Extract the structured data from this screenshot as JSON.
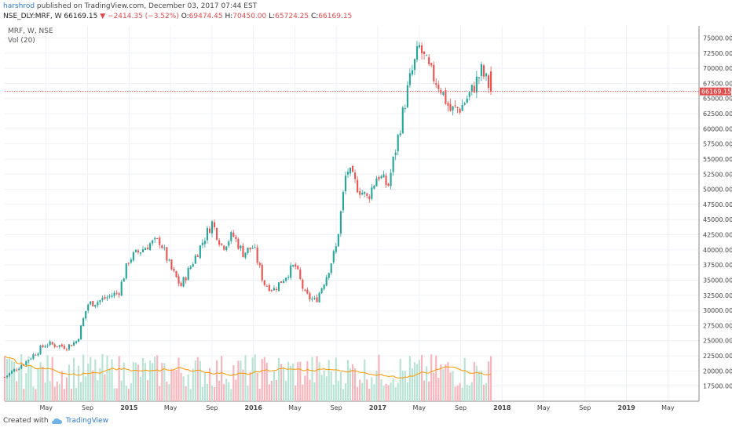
{
  "header": {
    "author": "harshrod",
    "published": "published on TradingView.com, December 03, 2017 07:44 EST"
  },
  "ohlc": {
    "symbol": "NSE_DLY:MRF, W",
    "last": "66169.15",
    "change": "−2414.35 (−3.52%)",
    "open_label": "O:",
    "open": "69474.45",
    "high_label": "H:",
    "high": "70450.00",
    "low_label": "L:",
    "low": "65724.25",
    "close_label": "C:",
    "close": "66169.15"
  },
  "legend": {
    "line1": "MRF, W, NSE",
    "line2": "Vol (20)"
  },
  "last_price_tag": "66169.15",
  "footer": {
    "created_with": "Created with",
    "brand": "TradingView"
  },
  "colors": {
    "up": "#26a69a",
    "down": "#ef5350",
    "vol_up": "#b7e3d5",
    "vol_down": "#f7b4bb",
    "vol_ma": "#ff9800",
    "grid": "#eef1f5",
    "price_line": "#e24c4c"
  },
  "chart_data": {
    "type": "candlestick",
    "y_ticks": [
      "75000.00",
      "72500.00",
      "70000.00",
      "67500.00",
      "65000.00",
      "62500.00",
      "60000.00",
      "57500.00",
      "55000.00",
      "52500.00",
      "50000.00",
      "47500.00",
      "45000.00",
      "42500.00",
      "40000.00",
      "37500.00",
      "35000.00",
      "32500.00",
      "30000.00",
      "27500.00",
      "25000.00",
      "22500.00",
      "20000.00",
      "17500.00"
    ],
    "y_tick_values": [
      75000,
      72500,
      70000,
      67500,
      65000,
      62500,
      60000,
      57500,
      55000,
      52500,
      50000,
      47500,
      45000,
      42500,
      40000,
      37500,
      35000,
      32500,
      30000,
      27500,
      25000,
      22500,
      20000,
      17500
    ],
    "ylim": [
      15000,
      77000
    ],
    "x_labels": [
      "May",
      "Sep",
      "2015",
      "May",
      "Sep",
      "2016",
      "May",
      "Sep",
      "2017",
      "May",
      "Sep",
      "2018",
      "May",
      "Sep",
      "2019",
      "May"
    ],
    "x_label_dates": [
      "2014-05",
      "2014-09",
      "2015-01",
      "2015-05",
      "2015-09",
      "2016-01",
      "2016-05",
      "2016-09",
      "2017-01",
      "2017-05",
      "2017-09",
      "2018-01",
      "2018-05",
      "2018-09",
      "2019-01",
      "2019-05"
    ],
    "xlim": [
      "2014-01",
      "2019-08"
    ],
    "price_anchors": [
      {
        "date": "2014-01",
        "price": 19000
      },
      {
        "date": "2014-03",
        "price": 21500
      },
      {
        "date": "2014-05",
        "price": 24500
      },
      {
        "date": "2014-07",
        "price": 24000
      },
      {
        "date": "2014-08",
        "price": 25000
      },
      {
        "date": "2014-09",
        "price": 31000
      },
      {
        "date": "2014-10",
        "price": 31500
      },
      {
        "date": "2014-12",
        "price": 33000
      },
      {
        "date": "2015-01",
        "price": 38500
      },
      {
        "date": "2015-03",
        "price": 41000
      },
      {
        "date": "2015-04",
        "price": 41500
      },
      {
        "date": "2015-05",
        "price": 37000
      },
      {
        "date": "2015-06",
        "price": 34000
      },
      {
        "date": "2015-07",
        "price": 37500
      },
      {
        "date": "2015-08",
        "price": 41000
      },
      {
        "date": "2015-09",
        "price": 44500
      },
      {
        "date": "2015-10",
        "price": 40500
      },
      {
        "date": "2015-11",
        "price": 42500
      },
      {
        "date": "2015-12",
        "price": 39500
      },
      {
        "date": "2016-01",
        "price": 40500
      },
      {
        "date": "2016-02",
        "price": 34500
      },
      {
        "date": "2016-03",
        "price": 33500
      },
      {
        "date": "2016-05",
        "price": 37500
      },
      {
        "date": "2016-06",
        "price": 32500
      },
      {
        "date": "2016-07",
        "price": 31500
      },
      {
        "date": "2016-08",
        "price": 35500
      },
      {
        "date": "2016-09",
        "price": 40500
      },
      {
        "date": "2016-10",
        "price": 53500
      },
      {
        "date": "2016-11",
        "price": 50500
      },
      {
        "date": "2016-12",
        "price": 48500
      },
      {
        "date": "2017-01",
        "price": 52500
      },
      {
        "date": "2017-02",
        "price": 50500
      },
      {
        "date": "2017-03",
        "price": 59000
      },
      {
        "date": "2017-04",
        "price": 67500
      },
      {
        "date": "2017-05",
        "price": 73500
      },
      {
        "date": "2017-06",
        "price": 69500
      },
      {
        "date": "2017-07",
        "price": 67000
      },
      {
        "date": "2017-08",
        "price": 63000
      },
      {
        "date": "2017-09",
        "price": 63500
      },
      {
        "date": "2017-10",
        "price": 66000
      },
      {
        "date": "2017-11",
        "price": 69500
      },
      {
        "date": "2017-12",
        "price": 66169.15
      }
    ]
  }
}
